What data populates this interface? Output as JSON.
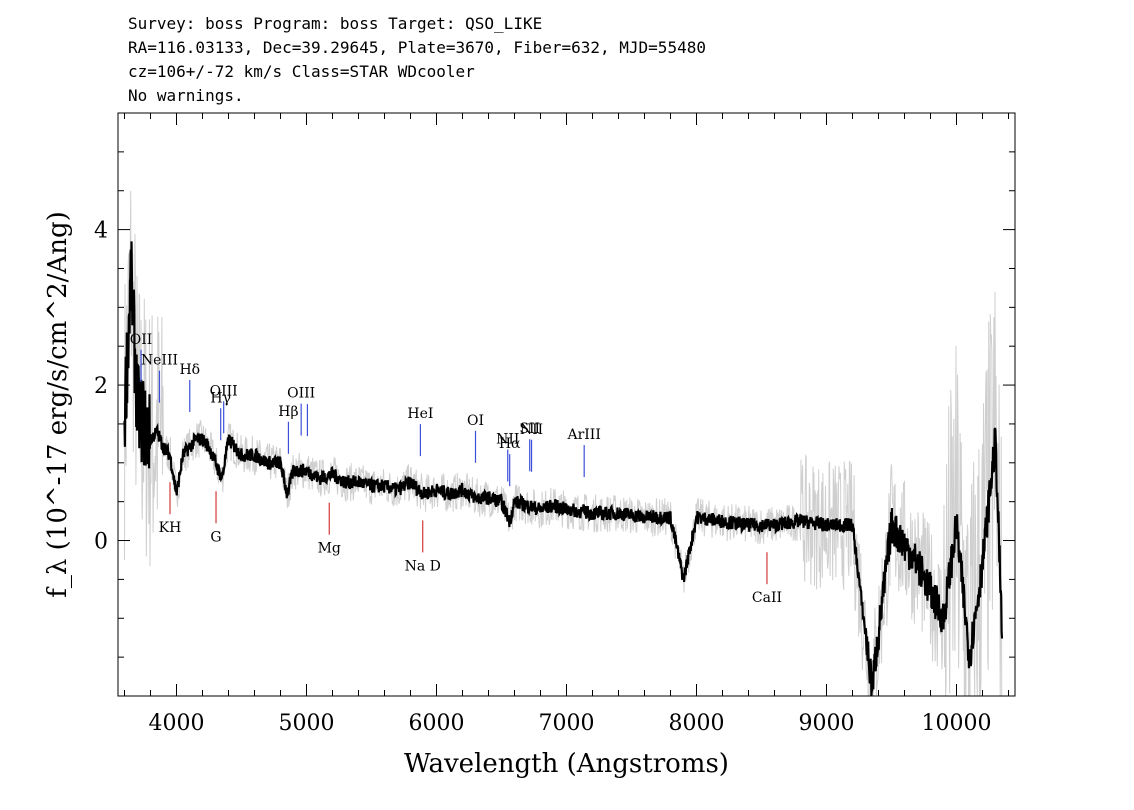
{
  "header": {
    "line1": "Survey: boss Program: boss Target: QSO_LIKE",
    "line2": "RA=116.03133, Dec=39.29645, Plate=3670, Fiber=632, MJD=55480",
    "line3": "cz=106+/-72 km/s Class=STAR WDcooler",
    "line4": "No warnings."
  },
  "chart_data": {
    "type": "line",
    "xlabel": "Wavelength (Angstroms)",
    "ylabel": "f_λ (10^-17 erg/s/cm^2/Ang)",
    "xlim": [
      3550,
      10450
    ],
    "ylim": [
      -2.0,
      5.5
    ],
    "x_ticks": [
      4000,
      5000,
      6000,
      7000,
      8000,
      9000,
      10000
    ],
    "y_ticks": [
      0,
      2,
      4
    ],
    "grid": false,
    "series": [
      {
        "color": "#000000",
        "x": [
          3600,
          3650,
          3700,
          3750,
          3800,
          3850,
          3900,
          3950,
          4000,
          4050,
          4100,
          4150,
          4200,
          4250,
          4300,
          4350,
          4400,
          4450,
          4500,
          4600,
          4700,
          4800,
          4850,
          4900,
          5000,
          5100,
          5200,
          5300,
          5400,
          5500,
          5600,
          5700,
          5800,
          5900,
          6000,
          6100,
          6200,
          6300,
          6400,
          6500,
          6563,
          6600,
          6700,
          6800,
          6900,
          7000,
          7200,
          7400,
          7600,
          7800,
          7900,
          8000,
          8200,
          8400,
          8600,
          8800,
          9000,
          9200,
          9350,
          9500,
          9700,
          9900,
          10000,
          10100,
          10200,
          10300,
          10350
        ],
        "values": [
          1.6,
          3.4,
          1.7,
          1.5,
          1.3,
          1.4,
          1.2,
          1.1,
          0.6,
          1.1,
          1.2,
          1.3,
          1.3,
          1.2,
          1.0,
          0.8,
          1.3,
          1.2,
          1.1,
          1.1,
          1.0,
          1.0,
          0.6,
          0.9,
          0.9,
          0.8,
          0.85,
          0.75,
          0.75,
          0.7,
          0.7,
          0.65,
          0.75,
          0.6,
          0.65,
          0.6,
          0.65,
          0.55,
          0.55,
          0.5,
          0.25,
          0.5,
          0.45,
          0.4,
          0.45,
          0.4,
          0.35,
          0.35,
          0.3,
          0.3,
          -0.5,
          0.3,
          0.25,
          0.2,
          0.2,
          0.25,
          0.2,
          0.2,
          -1.9,
          0.2,
          -0.3,
          -1.0,
          0.2,
          -1.5,
          -0.3,
          1.3,
          -1.2
        ]
      }
    ],
    "emission_lines": [
      {
        "label": "OII",
        "x": 3727
      },
      {
        "label": "NeIII",
        "x": 3869
      },
      {
        "label": "Hδ",
        "x": 4102
      },
      {
        "label": "Hγ",
        "x": 4340
      },
      {
        "label": "OIII",
        "x": 4363
      },
      {
        "label": "Hβ",
        "x": 4861
      },
      {
        "label": "OIII",
        "x": 4959
      },
      {
        "label": "",
        "x": 5007
      },
      {
        "label": "HeI",
        "x": 5876
      },
      {
        "label": "OI",
        "x": 6300
      },
      {
        "label": "NII",
        "x": 6548
      },
      {
        "label": "Hα",
        "x": 6563
      },
      {
        "label": "SII",
        "x": 6717
      },
      {
        "label": "NII",
        "x": 6731
      },
      {
        "label": "ArIII",
        "x": 7136
      }
    ],
    "absorption_lines": [
      {
        "label": "KH",
        "x": 3950
      },
      {
        "label": "G",
        "x": 4304
      },
      {
        "label": "Mg",
        "x": 5175
      },
      {
        "label": "Na D",
        "x": 5894
      },
      {
        "label": "CaII",
        "x": 8542
      }
    ]
  }
}
